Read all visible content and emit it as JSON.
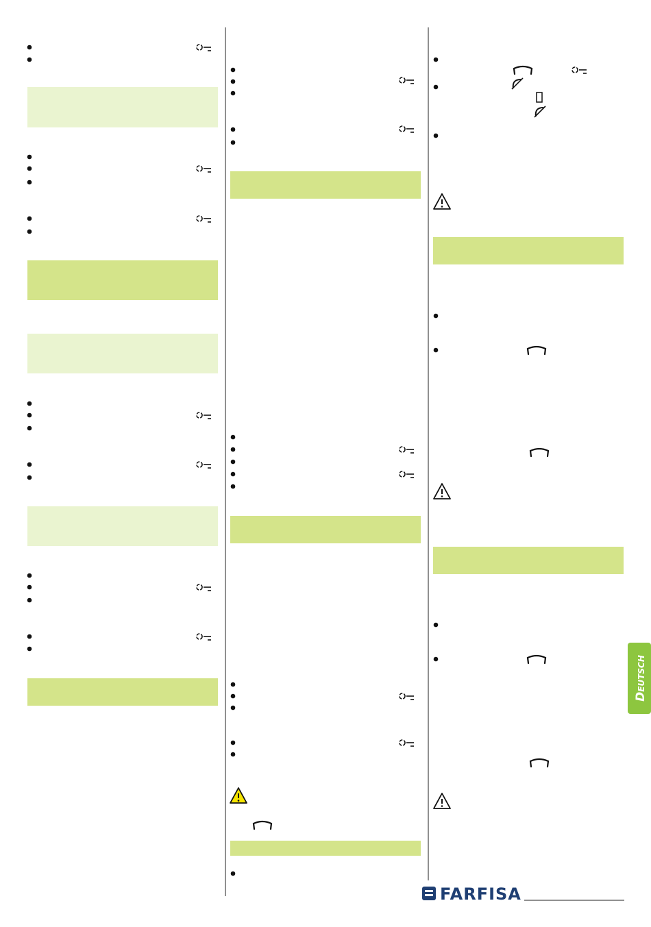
{
  "side_tab": {
    "label": "Deutsch"
  },
  "footer": {
    "logo": "FARFISA"
  }
}
